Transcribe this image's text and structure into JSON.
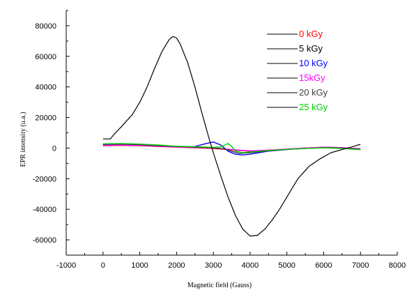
{
  "chart_data": {
    "type": "line",
    "title": "",
    "xlabel": "Magnetic field (Gauss)",
    "ylabel": "EPR intensity (u.a.)",
    "xlim": [
      -1000,
      8000
    ],
    "ylim": [
      -70000,
      90000
    ],
    "x_ticks": [
      -1000,
      0,
      1000,
      2000,
      3000,
      4000,
      5000,
      6000,
      7000,
      8000
    ],
    "y_ticks": [
      -60000,
      -40000,
      -20000,
      0,
      20000,
      40000,
      60000,
      80000
    ],
    "grid": false,
    "legend_position": "top-right",
    "series": [
      {
        "name": "0 kGy",
        "color": "#ff0000",
        "x": [
          0,
          500,
          1000,
          1500,
          2000,
          2500,
          3000,
          3500,
          4000,
          4500,
          5000,
          5500,
          6000,
          6500,
          7000
        ],
        "y": [
          1500,
          1800,
          1500,
          1000,
          600,
          200,
          -300,
          -1200,
          -2000,
          -1500,
          -800,
          0,
          600,
          300,
          -600
        ]
      },
      {
        "name": "5 kGy",
        "color": "#000000",
        "x": [
          0,
          200,
          300,
          500,
          800,
          1000,
          1200,
          1400,
          1600,
          1800,
          1900,
          2000,
          2100,
          2300,
          2500,
          2700,
          2900,
          3000,
          3200,
          3400,
          3600,
          3800,
          4000,
          4200,
          4400,
          4600,
          4800,
          5000,
          5300,
          5600,
          5900,
          6200,
          6500,
          6800,
          7000
        ],
        "y": [
          6000,
          6000,
          9000,
          14000,
          22000,
          30000,
          40000,
          52000,
          63000,
          71000,
          73000,
          72000,
          68000,
          56000,
          40000,
          22000,
          5000,
          -3000,
          -18000,
          -32000,
          -44000,
          -53000,
          -57500,
          -57000,
          -53000,
          -47000,
          -40000,
          -32000,
          -20000,
          -12000,
          -7000,
          -3000,
          -1000,
          1000,
          2500
        ]
      },
      {
        "name": "10 kGy",
        "color": "#0000ff",
        "x": [
          0,
          500,
          1000,
          1500,
          2000,
          2500,
          2800,
          3000,
          3200,
          3400,
          3600,
          3800,
          4000,
          4500,
          5000,
          5500,
          6000,
          6500,
          7000
        ],
        "y": [
          2000,
          2200,
          1800,
          1200,
          800,
          1000,
          3000,
          4000,
          2000,
          -2000,
          -4000,
          -4500,
          -4000,
          -2000,
          -1000,
          0,
          500,
          200,
          -500
        ]
      },
      {
        "name": "15kGy",
        "color": "#ff00ff",
        "x": [
          0,
          500,
          1000,
          1500,
          2000,
          2500,
          3000,
          3500,
          4000,
          4500,
          5000,
          5500,
          6000,
          6500,
          7000
        ],
        "y": [
          1800,
          2000,
          1700,
          1200,
          700,
          400,
          0,
          -1000,
          -1800,
          -1300,
          -600,
          100,
          500,
          200,
          -400
        ]
      },
      {
        "name": "20 kGy",
        "color": "#404040",
        "x": [
          0,
          500,
          1000,
          1500,
          2000,
          2500,
          3000,
          3300,
          3500,
          3700,
          4000,
          4500,
          5000,
          5500,
          6000,
          6500,
          7000
        ],
        "y": [
          2500,
          2600,
          2200,
          1600,
          1000,
          600,
          200,
          -500,
          -2000,
          -3500,
          -3000,
          -1800,
          -900,
          -200,
          300,
          0,
          -800
        ]
      },
      {
        "name": "25 kGy",
        "color": "#00cc00",
        "x": [
          0,
          500,
          1000,
          1500,
          2000,
          2500,
          3000,
          3200,
          3400,
          3500,
          3600,
          3800,
          4000,
          4500,
          5000,
          5500,
          6000,
          6500,
          7000
        ],
        "y": [
          2800,
          3000,
          2600,
          2000,
          1200,
          900,
          500,
          800,
          3000,
          1000,
          -2000,
          -3000,
          -2500,
          -1600,
          -800,
          -200,
          200,
          -300,
          -1000
        ]
      }
    ]
  }
}
